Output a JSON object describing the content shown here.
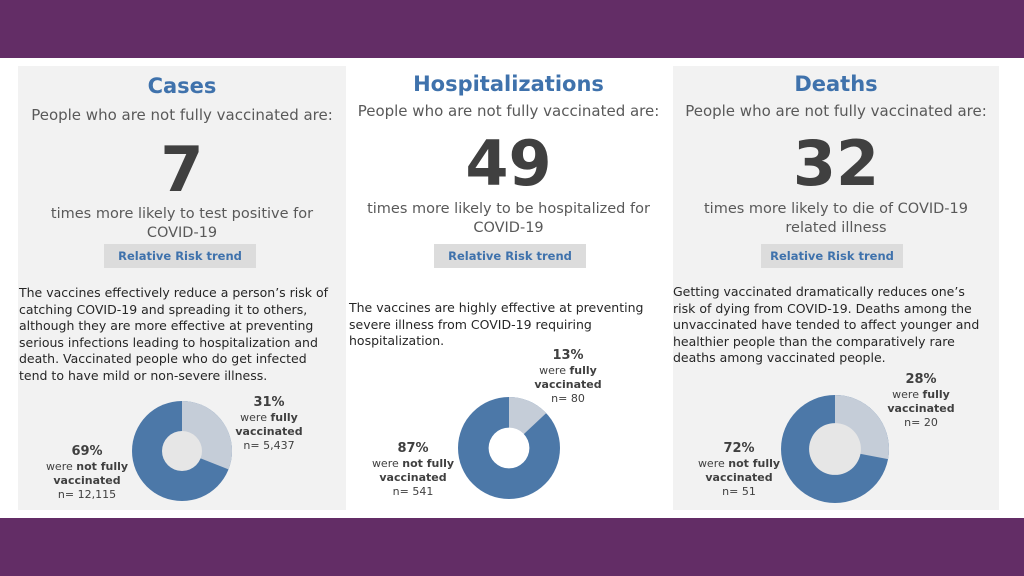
{
  "colors": {
    "band": "#632d66",
    "accent": "#3f72ac",
    "unvaccinated_slice": "#4c78a8",
    "vaccinated_slice": "#c5cdd8"
  },
  "panels": {
    "cases": {
      "title": "Cases",
      "subtitle": "People who are not fully vaccinated are:",
      "multiplier": "7",
      "description_line1": "times more likely to test positive for",
      "description_line2": "COVID-19",
      "button": "Relative Risk trend",
      "paragraph": [
        "The vaccines effectively reduce a person’s risk of",
        "catching COVID-19 and spreading it to others,",
        "although they are more effective at preventing",
        "serious infections leading to hospitalization and",
        "death. Vaccinated people who do get infected",
        "tend to have mild or non-severe illness."
      ],
      "donut": {
        "vaccinated_pct_value": 31,
        "vaccinated_pct": "31%",
        "vaccinated_were": "were ",
        "vaccinated_word": "fully",
        "vaccinated_word2": "vaccinated",
        "vaccinated_n": "n= 5,437",
        "unvaccinated_pct": "69%",
        "unvaccinated_were": "were ",
        "unvaccinated_word": "not fully",
        "unvaccinated_word2": "vaccinated",
        "unvaccinated_n": "n= 12,115"
      }
    },
    "hospitalizations": {
      "title": "Hospitalizations",
      "subtitle": "People who are not fully vaccinated are:",
      "multiplier": "49",
      "description_line1": "times more likely to be hospitalized for",
      "description_line2": "COVID-19",
      "button": "Relative Risk trend",
      "paragraph": [
        "The vaccines are highly effective at preventing",
        "severe illness from COVID-19 requiring",
        "hospitalization."
      ],
      "donut": {
        "vaccinated_pct_value": 13,
        "vaccinated_pct": "13%",
        "vaccinated_were": "were ",
        "vaccinated_word": "fully",
        "vaccinated_word2": "vaccinated",
        "vaccinated_n": "n= 80",
        "unvaccinated_pct": "87%",
        "unvaccinated_were": "were ",
        "unvaccinated_word": "not fully",
        "unvaccinated_word2": "vaccinated",
        "unvaccinated_n": "n= 541"
      }
    },
    "deaths": {
      "title": "Deaths",
      "subtitle": "People who are not fully vaccinated are:",
      "multiplier": "32",
      "description_line1": "times more likely to die of COVID-19",
      "description_line2": "related illness",
      "button": "Relative Risk trend",
      "paragraph": [
        "Getting vaccinated dramatically reduces one’s",
        "risk of dying from COVID-19. Deaths among the",
        "unvaccinated have tended to affect younger and",
        "healthier people than the comparatively rare",
        "deaths among vaccinated people."
      ],
      "donut": {
        "vaccinated_pct_value": 28,
        "vaccinated_pct": "28%",
        "vaccinated_were": "were ",
        "vaccinated_word": "fully",
        "vaccinated_word2": "vaccinated",
        "vaccinated_n": "n= 20",
        "unvaccinated_pct": "72%",
        "unvaccinated_were": "were ",
        "unvaccinated_word": "not fully",
        "unvaccinated_word2": "vaccinated",
        "unvaccinated_n": "n= 51"
      }
    }
  }
}
